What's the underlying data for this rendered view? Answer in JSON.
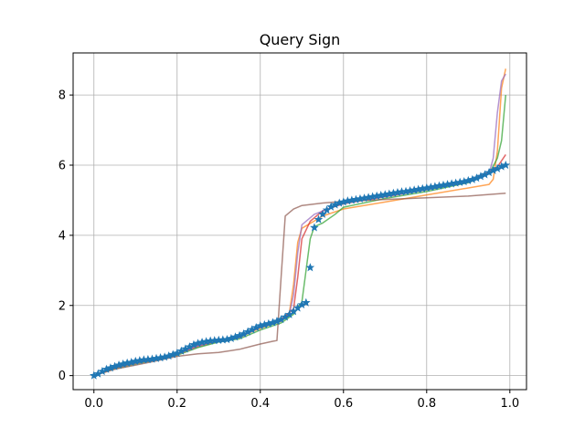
{
  "chart_data": {
    "type": "line",
    "title": "Query Sign",
    "xlabel": "",
    "ylabel": "",
    "xlim": [
      -0.05,
      1.04
    ],
    "ylim": [
      -0.4,
      9.2
    ],
    "x_ticks": [
      0.0,
      0.2,
      0.4,
      0.6,
      0.8,
      1.0
    ],
    "x_tick_labels": [
      "0.0",
      "0.2",
      "0.4",
      "0.6",
      "0.8",
      "1.0"
    ],
    "y_ticks": [
      0,
      2,
      4,
      6,
      8
    ],
    "y_tick_labels": [
      "0",
      "2",
      "4",
      "6",
      "8"
    ],
    "grid": true,
    "legend": "none",
    "series": [
      {
        "color": "#ff7f0e",
        "style": "line",
        "points": [
          [
            0.0,
            0.0
          ],
          [
            0.05,
            0.22
          ],
          [
            0.1,
            0.35
          ],
          [
            0.15,
            0.48
          ],
          [
            0.2,
            0.6
          ],
          [
            0.25,
            0.82
          ],
          [
            0.3,
            0.98
          ],
          [
            0.35,
            1.1
          ],
          [
            0.4,
            1.35
          ],
          [
            0.45,
            1.55
          ],
          [
            0.47,
            1.8
          ],
          [
            0.48,
            2.6
          ],
          [
            0.49,
            3.8
          ],
          [
            0.5,
            4.2
          ],
          [
            0.55,
            4.55
          ],
          [
            0.6,
            4.75
          ],
          [
            0.7,
            4.95
          ],
          [
            0.8,
            5.15
          ],
          [
            0.9,
            5.35
          ],
          [
            0.95,
            5.45
          ],
          [
            0.96,
            5.6
          ],
          [
            0.97,
            6.4
          ],
          [
            0.98,
            8.2
          ],
          [
            0.99,
            8.75
          ]
        ]
      },
      {
        "color": "#2ca02c",
        "style": "line",
        "points": [
          [
            0.0,
            0.0
          ],
          [
            0.05,
            0.2
          ],
          [
            0.1,
            0.33
          ],
          [
            0.15,
            0.45
          ],
          [
            0.2,
            0.58
          ],
          [
            0.25,
            0.8
          ],
          [
            0.3,
            0.96
          ],
          [
            0.35,
            1.05
          ],
          [
            0.4,
            1.3
          ],
          [
            0.45,
            1.5
          ],
          [
            0.48,
            1.75
          ],
          [
            0.5,
            2.1
          ],
          [
            0.51,
            3.0
          ],
          [
            0.52,
            3.9
          ],
          [
            0.53,
            4.25
          ],
          [
            0.55,
            4.35
          ],
          [
            0.58,
            4.6
          ],
          [
            0.6,
            4.8
          ],
          [
            0.7,
            5.05
          ],
          [
            0.8,
            5.25
          ],
          [
            0.9,
            5.5
          ],
          [
            0.95,
            5.75
          ],
          [
            0.97,
            6.2
          ],
          [
            0.98,
            6.7
          ],
          [
            0.99,
            8.0
          ]
        ]
      },
      {
        "color": "#d62728",
        "style": "line",
        "points": [
          [
            0.0,
            0.0
          ],
          [
            0.05,
            0.23
          ],
          [
            0.1,
            0.36
          ],
          [
            0.15,
            0.48
          ],
          [
            0.2,
            0.62
          ],
          [
            0.25,
            0.85
          ],
          [
            0.3,
            1.0
          ],
          [
            0.35,
            1.1
          ],
          [
            0.4,
            1.4
          ],
          [
            0.45,
            1.6
          ],
          [
            0.48,
            1.9
          ],
          [
            0.49,
            2.8
          ],
          [
            0.5,
            3.9
          ],
          [
            0.52,
            4.4
          ],
          [
            0.55,
            4.7
          ],
          [
            0.6,
            4.9
          ],
          [
            0.7,
            5.1
          ],
          [
            0.8,
            5.3
          ],
          [
            0.9,
            5.55
          ],
          [
            0.95,
            5.8
          ],
          [
            0.97,
            5.95
          ],
          [
            0.99,
            6.3
          ]
        ]
      },
      {
        "color": "#9467bd",
        "style": "line",
        "points": [
          [
            0.0,
            0.0
          ],
          [
            0.05,
            0.22
          ],
          [
            0.1,
            0.35
          ],
          [
            0.15,
            0.47
          ],
          [
            0.2,
            0.6
          ],
          [
            0.25,
            0.84
          ],
          [
            0.3,
            0.99
          ],
          [
            0.35,
            1.08
          ],
          [
            0.4,
            1.38
          ],
          [
            0.45,
            1.55
          ],
          [
            0.47,
            1.75
          ],
          [
            0.48,
            2.3
          ],
          [
            0.49,
            3.5
          ],
          [
            0.5,
            4.3
          ],
          [
            0.53,
            4.6
          ],
          [
            0.6,
            4.92
          ],
          [
            0.7,
            5.1
          ],
          [
            0.8,
            5.3
          ],
          [
            0.9,
            5.52
          ],
          [
            0.95,
            5.75
          ],
          [
            0.96,
            6.2
          ],
          [
            0.97,
            7.5
          ],
          [
            0.98,
            8.4
          ],
          [
            0.99,
            8.6
          ]
        ]
      },
      {
        "color": "#8c564b",
        "style": "line",
        "points": [
          [
            0.0,
            0.0
          ],
          [
            0.05,
            0.18
          ],
          [
            0.1,
            0.3
          ],
          [
            0.15,
            0.42
          ],
          [
            0.2,
            0.55
          ],
          [
            0.25,
            0.62
          ],
          [
            0.3,
            0.66
          ],
          [
            0.35,
            0.75
          ],
          [
            0.4,
            0.9
          ],
          [
            0.43,
            0.98
          ],
          [
            0.44,
            1.0
          ],
          [
            0.45,
            2.8
          ],
          [
            0.46,
            4.55
          ],
          [
            0.48,
            4.75
          ],
          [
            0.5,
            4.85
          ],
          [
            0.55,
            4.92
          ],
          [
            0.6,
            4.97
          ],
          [
            0.7,
            5.02
          ],
          [
            0.8,
            5.07
          ],
          [
            0.9,
            5.12
          ],
          [
            0.99,
            5.2
          ]
        ]
      },
      {
        "color": "#1f77b4",
        "style": "markers",
        "marker": "star",
        "points": [
          [
            0.0,
            0.0
          ],
          [
            0.01,
            0.05
          ],
          [
            0.02,
            0.12
          ],
          [
            0.03,
            0.18
          ],
          [
            0.04,
            0.22
          ],
          [
            0.05,
            0.26
          ],
          [
            0.06,
            0.3
          ],
          [
            0.07,
            0.33
          ],
          [
            0.08,
            0.36
          ],
          [
            0.09,
            0.38
          ],
          [
            0.1,
            0.41
          ],
          [
            0.11,
            0.43
          ],
          [
            0.12,
            0.45
          ],
          [
            0.13,
            0.46
          ],
          [
            0.14,
            0.47
          ],
          [
            0.15,
            0.49
          ],
          [
            0.16,
            0.51
          ],
          [
            0.17,
            0.53
          ],
          [
            0.18,
            0.56
          ],
          [
            0.19,
            0.6
          ],
          [
            0.2,
            0.64
          ],
          [
            0.21,
            0.7
          ],
          [
            0.22,
            0.76
          ],
          [
            0.23,
            0.82
          ],
          [
            0.24,
            0.88
          ],
          [
            0.25,
            0.92
          ],
          [
            0.26,
            0.95
          ],
          [
            0.27,
            0.97
          ],
          [
            0.28,
            0.99
          ],
          [
            0.29,
            1.0
          ],
          [
            0.3,
            1.01
          ],
          [
            0.31,
            1.02
          ],
          [
            0.32,
            1.03
          ],
          [
            0.33,
            1.06
          ],
          [
            0.34,
            1.1
          ],
          [
            0.35,
            1.14
          ],
          [
            0.36,
            1.19
          ],
          [
            0.37,
            1.25
          ],
          [
            0.38,
            1.31
          ],
          [
            0.39,
            1.37
          ],
          [
            0.4,
            1.42
          ],
          [
            0.41,
            1.45
          ],
          [
            0.42,
            1.48
          ],
          [
            0.43,
            1.51
          ],
          [
            0.44,
            1.55
          ],
          [
            0.45,
            1.6
          ],
          [
            0.46,
            1.67
          ],
          [
            0.47,
            1.74
          ],
          [
            0.48,
            1.83
          ],
          [
            0.49,
            1.93
          ],
          [
            0.5,
            2.02
          ],
          [
            0.51,
            2.08
          ],
          [
            0.52,
            3.08
          ],
          [
            0.53,
            4.22
          ],
          [
            0.54,
            4.45
          ],
          [
            0.55,
            4.6
          ],
          [
            0.56,
            4.72
          ],
          [
            0.57,
            4.81
          ],
          [
            0.58,
            4.87
          ],
          [
            0.59,
            4.92
          ],
          [
            0.6,
            4.95
          ],
          [
            0.61,
            4.98
          ],
          [
            0.62,
            5.0
          ],
          [
            0.63,
            5.02
          ],
          [
            0.64,
            5.04
          ],
          [
            0.65,
            5.06
          ],
          [
            0.66,
            5.08
          ],
          [
            0.67,
            5.1
          ],
          [
            0.68,
            5.12
          ],
          [
            0.69,
            5.14
          ],
          [
            0.7,
            5.16
          ],
          [
            0.71,
            5.18
          ],
          [
            0.72,
            5.2
          ],
          [
            0.73,
            5.22
          ],
          [
            0.74,
            5.24
          ],
          [
            0.75,
            5.25
          ],
          [
            0.76,
            5.27
          ],
          [
            0.77,
            5.29
          ],
          [
            0.78,
            5.31
          ],
          [
            0.79,
            5.33
          ],
          [
            0.8,
            5.35
          ],
          [
            0.81,
            5.37
          ],
          [
            0.82,
            5.39
          ],
          [
            0.83,
            5.41
          ],
          [
            0.84,
            5.43
          ],
          [
            0.85,
            5.45
          ],
          [
            0.86,
            5.47
          ],
          [
            0.87,
            5.49
          ],
          [
            0.88,
            5.51
          ],
          [
            0.89,
            5.53
          ],
          [
            0.9,
            5.56
          ],
          [
            0.91,
            5.59
          ],
          [
            0.92,
            5.63
          ],
          [
            0.93,
            5.68
          ],
          [
            0.94,
            5.73
          ],
          [
            0.95,
            5.79
          ],
          [
            0.96,
            5.85
          ],
          [
            0.97,
            5.9
          ],
          [
            0.98,
            5.96
          ],
          [
            0.99,
            6.0
          ]
        ]
      }
    ]
  }
}
